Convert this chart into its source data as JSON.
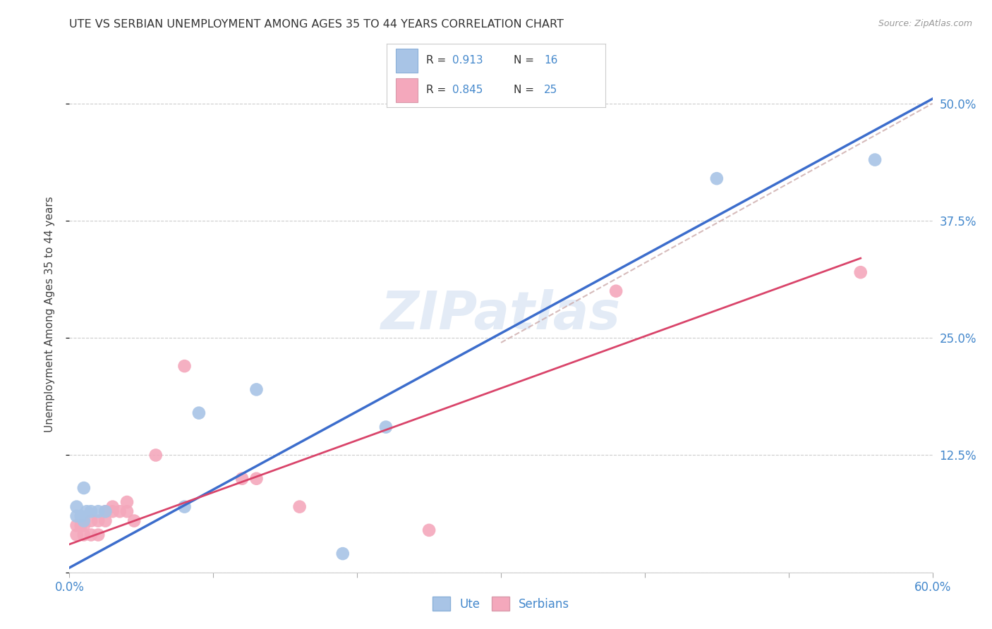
{
  "title": "UTE VS SERBIAN UNEMPLOYMENT AMONG AGES 35 TO 44 YEARS CORRELATION CHART",
  "source": "Source: ZipAtlas.com",
  "ylabel": "Unemployment Among Ages 35 to 44 years",
  "xlim": [
    0.0,
    0.6
  ],
  "ylim": [
    0.0,
    0.55
  ],
  "xticks": [
    0.0,
    0.1,
    0.2,
    0.3,
    0.4,
    0.5,
    0.6
  ],
  "xticklabels": [
    "0.0%",
    "",
    "",
    "",
    "",
    "",
    "60.0%"
  ],
  "yticks": [
    0.0,
    0.125,
    0.25,
    0.375,
    0.5
  ],
  "yticklabels_right": [
    "",
    "12.5%",
    "25.0%",
    "37.5%",
    "50.0%"
  ],
  "ute_R": "0.913",
  "ute_N": "16",
  "serbian_R": "0.845",
  "serbian_N": "25",
  "ute_scatter_color": "#a8c4e6",
  "ute_line_color": "#3c6dcc",
  "serbian_scatter_color": "#f4a8bc",
  "serbian_line_color": "#d9446a",
  "dashed_line_color": "#ccaabb",
  "watermark": "ZIPatlas",
  "ute_points": [
    [
      0.005,
      0.07
    ],
    [
      0.005,
      0.06
    ],
    [
      0.008,
      0.06
    ],
    [
      0.01,
      0.09
    ],
    [
      0.012,
      0.065
    ],
    [
      0.015,
      0.065
    ],
    [
      0.02,
      0.065
    ],
    [
      0.025,
      0.065
    ],
    [
      0.01,
      0.055
    ],
    [
      0.08,
      0.07
    ],
    [
      0.09,
      0.17
    ],
    [
      0.13,
      0.195
    ],
    [
      0.19,
      0.02
    ],
    [
      0.22,
      0.155
    ],
    [
      0.45,
      0.42
    ],
    [
      0.56,
      0.44
    ]
  ],
  "serbian_points": [
    [
      0.005,
      0.04
    ],
    [
      0.01,
      0.04
    ],
    [
      0.015,
      0.04
    ],
    [
      0.02,
      0.04
    ],
    [
      0.005,
      0.05
    ],
    [
      0.008,
      0.05
    ],
    [
      0.01,
      0.05
    ],
    [
      0.015,
      0.055
    ],
    [
      0.02,
      0.055
    ],
    [
      0.025,
      0.055
    ],
    [
      0.025,
      0.065
    ],
    [
      0.03,
      0.065
    ],
    [
      0.035,
      0.065
    ],
    [
      0.04,
      0.065
    ],
    [
      0.04,
      0.075
    ],
    [
      0.06,
      0.125
    ],
    [
      0.08,
      0.22
    ],
    [
      0.12,
      0.1
    ],
    [
      0.13,
      0.1
    ],
    [
      0.16,
      0.07
    ],
    [
      0.25,
      0.045
    ],
    [
      0.03,
      0.07
    ],
    [
      0.045,
      0.055
    ],
    [
      0.38,
      0.3
    ],
    [
      0.55,
      0.32
    ]
  ],
  "background_color": "#ffffff",
  "grid_color": "#cccccc",
  "tick_color": "#4488cc",
  "title_color": "#333333",
  "ylabel_color": "#444444",
  "ute_line_x": [
    0.0,
    0.6
  ],
  "ute_line_y": [
    0.005,
    0.505
  ],
  "serbian_line_x": [
    0.0,
    0.55
  ],
  "serbian_line_y": [
    0.03,
    0.335
  ],
  "dashed_line_x": [
    0.3,
    0.6
  ],
  "dashed_line_y": [
    0.245,
    0.5
  ]
}
